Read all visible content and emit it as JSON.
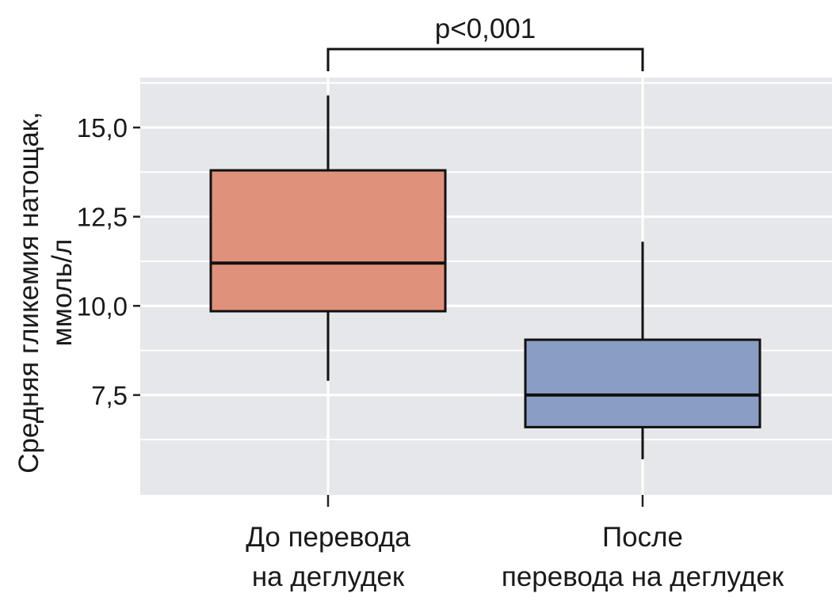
{
  "chart_data": {
    "type": "box",
    "ylabel_line1": "Средняя гликемия натощак,",
    "ylabel_line2": "ммоль/л",
    "xlabel": "",
    "y_ticks": [
      7.5,
      10.0,
      12.5,
      15.0
    ],
    "y_tick_labels": [
      "7,5",
      "10,0",
      "12,5",
      "15,0"
    ],
    "ylim": [
      4.7,
      16.4
    ],
    "grid": true,
    "categories": [
      {
        "line1": "До перевода",
        "line2": "на деглудек"
      },
      {
        "line1": "После",
        "line2": "перевода на деглудек"
      }
    ],
    "boxes": [
      {
        "whisker_low": 7.9,
        "q1": 9.85,
        "median": 11.2,
        "q3": 13.8,
        "whisker_high": 15.9,
        "color": "#df917b"
      },
      {
        "whisker_low": 5.7,
        "q1": 6.6,
        "median": 7.5,
        "q3": 9.05,
        "whisker_high": 11.8,
        "color": "#8a9ec5"
      }
    ],
    "significance": {
      "label": "p<0,001",
      "between": [
        0,
        1
      ]
    }
  },
  "colors": {
    "panel_bg": "#e6e7ea",
    "grid": "#ffffff",
    "box_line": "#111111"
  }
}
